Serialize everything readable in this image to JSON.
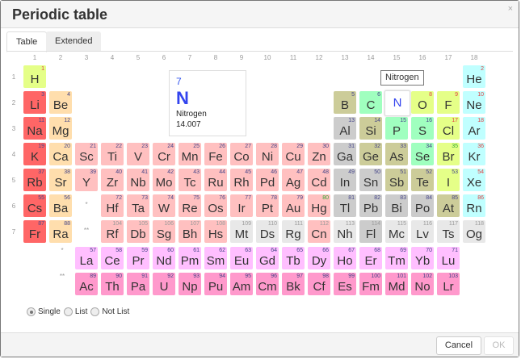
{
  "dialog": {
    "title": "Periodic table",
    "close": "×"
  },
  "tabs": [
    {
      "label": "Table",
      "active": true
    },
    {
      "label": "Extended",
      "active": false
    }
  ],
  "groups": [
    "1",
    "2",
    "3",
    "4",
    "5",
    "6",
    "7",
    "8",
    "9",
    "10",
    "11",
    "12",
    "13",
    "14",
    "15",
    "16",
    "17",
    "18"
  ],
  "periods": [
    "1",
    "2",
    "3",
    "4",
    "5",
    "6",
    "7"
  ],
  "markers": {
    "lanthanide": "*",
    "actinide": "**"
  },
  "selected": {
    "number": "7",
    "symbol": "N",
    "name": "Nitrogen",
    "weight": "14.007"
  },
  "tooltip": "Nitrogen",
  "category_colors": {
    "alkali": "#ff6666",
    "alkaline": "#ffdead",
    "transition": "#ffc0c0",
    "post": "#cccccc",
    "metalloid": "#cccc99",
    "nonmetal": "#a0ffbf",
    "halogen": "#e5ff88",
    "noble": "#c0ffff",
    "unknown": "#e8e8e8",
    "lanthanide": "#ffbfff",
    "actinide": "#ff99cc",
    "selected": "#ffffff"
  },
  "state_colors": {
    "solid": "#444488",
    "gas": "#e04040",
    "liquid": "#33aa33",
    "unknown": "#999999"
  },
  "elements": [
    [
      1,
      "H",
      1,
      1,
      "halogen",
      "gas"
    ],
    [
      2,
      "He",
      18,
      1,
      "noble",
      "gas"
    ],
    [
      3,
      "Li",
      1,
      2,
      "alkali",
      "solid"
    ],
    [
      4,
      "Be",
      2,
      2,
      "alkaline",
      "solid"
    ],
    [
      5,
      "B",
      13,
      2,
      "metalloid",
      "solid"
    ],
    [
      6,
      "C",
      14,
      2,
      "nonmetal",
      "solid"
    ],
    [
      7,
      "N",
      15,
      2,
      "selected",
      "gas"
    ],
    [
      8,
      "O",
      16,
      2,
      "halogen",
      "gas"
    ],
    [
      9,
      "F",
      17,
      2,
      "halogen",
      "gas"
    ],
    [
      10,
      "Ne",
      18,
      2,
      "noble",
      "gas"
    ],
    [
      11,
      "Na",
      1,
      3,
      "alkali",
      "solid"
    ],
    [
      12,
      "Mg",
      2,
      3,
      "alkaline",
      "solid"
    ],
    [
      13,
      "Al",
      13,
      3,
      "post",
      "solid"
    ],
    [
      14,
      "Si",
      14,
      3,
      "metalloid",
      "solid"
    ],
    [
      15,
      "P",
      15,
      3,
      "nonmetal",
      "solid"
    ],
    [
      16,
      "S",
      16,
      3,
      "nonmetal",
      "solid"
    ],
    [
      17,
      "Cl",
      17,
      3,
      "halogen",
      "gas"
    ],
    [
      18,
      "Ar",
      18,
      3,
      "noble",
      "gas"
    ],
    [
      19,
      "K",
      1,
      4,
      "alkali",
      "solid"
    ],
    [
      20,
      "Ca",
      2,
      4,
      "alkaline",
      "solid"
    ],
    [
      21,
      "Sc",
      3,
      4,
      "transition",
      "solid"
    ],
    [
      22,
      "Ti",
      4,
      4,
      "transition",
      "solid"
    ],
    [
      23,
      "V",
      5,
      4,
      "transition",
      "solid"
    ],
    [
      24,
      "Cr",
      6,
      4,
      "transition",
      "solid"
    ],
    [
      25,
      "Mn",
      7,
      4,
      "transition",
      "solid"
    ],
    [
      26,
      "Fe",
      8,
      4,
      "transition",
      "solid"
    ],
    [
      27,
      "Co",
      9,
      4,
      "transition",
      "solid"
    ],
    [
      28,
      "Ni",
      10,
      4,
      "transition",
      "solid"
    ],
    [
      29,
      "Cu",
      11,
      4,
      "transition",
      "solid"
    ],
    [
      30,
      "Zn",
      12,
      4,
      "transition",
      "solid"
    ],
    [
      31,
      "Ga",
      13,
      4,
      "post",
      "solid"
    ],
    [
      32,
      "Ge",
      14,
      4,
      "metalloid",
      "solid"
    ],
    [
      33,
      "As",
      15,
      4,
      "metalloid",
      "solid"
    ],
    [
      34,
      "Se",
      16,
      4,
      "nonmetal",
      "solid"
    ],
    [
      35,
      "Br",
      17,
      4,
      "halogen",
      "liquid"
    ],
    [
      36,
      "Kr",
      18,
      4,
      "noble",
      "gas"
    ],
    [
      37,
      "Rb",
      1,
      5,
      "alkali",
      "solid"
    ],
    [
      38,
      "Sr",
      2,
      5,
      "alkaline",
      "solid"
    ],
    [
      39,
      "Y",
      3,
      5,
      "transition",
      "solid"
    ],
    [
      40,
      "Zr",
      4,
      5,
      "transition",
      "solid"
    ],
    [
      41,
      "Nb",
      5,
      5,
      "transition",
      "solid"
    ],
    [
      42,
      "Mo",
      6,
      5,
      "transition",
      "solid"
    ],
    [
      43,
      "Tc",
      7,
      5,
      "transition",
      "solid"
    ],
    [
      44,
      "Ru",
      8,
      5,
      "transition",
      "solid"
    ],
    [
      45,
      "Rh",
      9,
      5,
      "transition",
      "solid"
    ],
    [
      46,
      "Pd",
      10,
      5,
      "transition",
      "solid"
    ],
    [
      47,
      "Ag",
      11,
      5,
      "transition",
      "solid"
    ],
    [
      48,
      "Cd",
      12,
      5,
      "transition",
      "solid"
    ],
    [
      49,
      "In",
      13,
      5,
      "post",
      "solid"
    ],
    [
      50,
      "Sn",
      14,
      5,
      "post",
      "solid"
    ],
    [
      51,
      "Sb",
      15,
      5,
      "metalloid",
      "solid"
    ],
    [
      52,
      "Te",
      16,
      5,
      "metalloid",
      "solid"
    ],
    [
      53,
      "I",
      17,
      5,
      "halogen",
      "solid"
    ],
    [
      54,
      "Xe",
      18,
      5,
      "noble",
      "gas"
    ],
    [
      55,
      "Cs",
      1,
      6,
      "alkali",
      "solid"
    ],
    [
      56,
      "Ba",
      2,
      6,
      "alkaline",
      "solid"
    ],
    [
      72,
      "Hf",
      4,
      6,
      "transition",
      "solid"
    ],
    [
      73,
      "Ta",
      5,
      6,
      "transition",
      "solid"
    ],
    [
      74,
      "W",
      6,
      6,
      "transition",
      "solid"
    ],
    [
      75,
      "Re",
      7,
      6,
      "transition",
      "solid"
    ],
    [
      76,
      "Os",
      8,
      6,
      "transition",
      "solid"
    ],
    [
      77,
      "Ir",
      9,
      6,
      "transition",
      "solid"
    ],
    [
      78,
      "Pt",
      10,
      6,
      "transition",
      "solid"
    ],
    [
      79,
      "Au",
      11,
      6,
      "transition",
      "solid"
    ],
    [
      80,
      "Hg",
      12,
      6,
      "transition",
      "liquid"
    ],
    [
      81,
      "Tl",
      13,
      6,
      "post",
      "solid"
    ],
    [
      82,
      "Pb",
      14,
      6,
      "post",
      "solid"
    ],
    [
      83,
      "Bi",
      15,
      6,
      "post",
      "solid"
    ],
    [
      84,
      "Po",
      16,
      6,
      "post",
      "solid"
    ],
    [
      85,
      "At",
      17,
      6,
      "metalloid",
      "solid"
    ],
    [
      86,
      "Rn",
      18,
      6,
      "noble",
      "gas"
    ],
    [
      87,
      "Fr",
      1,
      7,
      "alkali",
      "solid"
    ],
    [
      88,
      "Ra",
      2,
      7,
      "alkaline",
      "solid"
    ],
    [
      104,
      "Rf",
      4,
      7,
      "transition",
      "unknown"
    ],
    [
      105,
      "Db",
      5,
      7,
      "transition",
      "unknown"
    ],
    [
      106,
      "Sg",
      6,
      7,
      "transition",
      "unknown"
    ],
    [
      107,
      "Bh",
      7,
      7,
      "transition",
      "unknown"
    ],
    [
      108,
      "Hs",
      8,
      7,
      "transition",
      "unknown"
    ],
    [
      109,
      "Mt",
      9,
      7,
      "unknown",
      "unknown"
    ],
    [
      110,
      "Ds",
      10,
      7,
      "unknown",
      "unknown"
    ],
    [
      111,
      "Rg",
      11,
      7,
      "unknown",
      "unknown"
    ],
    [
      112,
      "Cn",
      12,
      7,
      "transition",
      "unknown"
    ],
    [
      113,
      "Nh",
      13,
      7,
      "unknown",
      "unknown"
    ],
    [
      114,
      "Fl",
      14,
      7,
      "post",
      "unknown"
    ],
    [
      115,
      "Mc",
      15,
      7,
      "unknown",
      "unknown"
    ],
    [
      116,
      "Lv",
      16,
      7,
      "unknown",
      "unknown"
    ],
    [
      117,
      "Ts",
      17,
      7,
      "unknown",
      "unknown"
    ],
    [
      118,
      "Og",
      18,
      7,
      "unknown",
      "unknown"
    ],
    [
      57,
      "La",
      3,
      8,
      "lanthanide",
      "solid"
    ],
    [
      58,
      "Ce",
      4,
      8,
      "lanthanide",
      "solid"
    ],
    [
      59,
      "Pr",
      5,
      8,
      "lanthanide",
      "solid"
    ],
    [
      60,
      "Nd",
      6,
      8,
      "lanthanide",
      "solid"
    ],
    [
      61,
      "Pm",
      7,
      8,
      "lanthanide",
      "solid"
    ],
    [
      62,
      "Sm",
      8,
      8,
      "lanthanide",
      "solid"
    ],
    [
      63,
      "Eu",
      9,
      8,
      "lanthanide",
      "solid"
    ],
    [
      64,
      "Gd",
      10,
      8,
      "lanthanide",
      "solid"
    ],
    [
      65,
      "Tb",
      11,
      8,
      "lanthanide",
      "solid"
    ],
    [
      66,
      "Dy",
      12,
      8,
      "lanthanide",
      "solid"
    ],
    [
      67,
      "Ho",
      13,
      8,
      "lanthanide",
      "solid"
    ],
    [
      68,
      "Er",
      14,
      8,
      "lanthanide",
      "solid"
    ],
    [
      69,
      "Tm",
      15,
      8,
      "lanthanide",
      "solid"
    ],
    [
      70,
      "Yb",
      16,
      8,
      "lanthanide",
      "solid"
    ],
    [
      71,
      "Lu",
      17,
      8,
      "lanthanide",
      "solid"
    ],
    [
      89,
      "Ac",
      3,
      9,
      "actinide",
      "solid"
    ],
    [
      90,
      "Th",
      4,
      9,
      "actinide",
      "solid"
    ],
    [
      91,
      "Pa",
      5,
      9,
      "actinide",
      "solid"
    ],
    [
      92,
      "U",
      6,
      9,
      "actinide",
      "solid"
    ],
    [
      93,
      "Np",
      7,
      9,
      "actinide",
      "solid"
    ],
    [
      94,
      "Pu",
      8,
      9,
      "actinide",
      "solid"
    ],
    [
      95,
      "Am",
      9,
      9,
      "actinide",
      "solid"
    ],
    [
      96,
      "Cm",
      10,
      9,
      "actinide",
      "solid"
    ],
    [
      97,
      "Bk",
      11,
      9,
      "actinide",
      "solid"
    ],
    [
      98,
      "Cf",
      12,
      9,
      "actinide",
      "solid"
    ],
    [
      99,
      "Es",
      13,
      9,
      "actinide",
      "solid"
    ],
    [
      100,
      "Fm",
      14,
      9,
      "actinide",
      "solid"
    ],
    [
      101,
      "Md",
      15,
      9,
      "actinide",
      "solid"
    ],
    [
      102,
      "No",
      16,
      9,
      "actinide",
      "solid"
    ],
    [
      103,
      "Lr",
      17,
      9,
      "actinide",
      "solid"
    ]
  ],
  "selection_mode": {
    "options": [
      "Single",
      "List",
      "Not List"
    ],
    "selected": "Single"
  },
  "footer": {
    "cancel": "Cancel",
    "ok": "OK",
    "ok_enabled": false
  }
}
